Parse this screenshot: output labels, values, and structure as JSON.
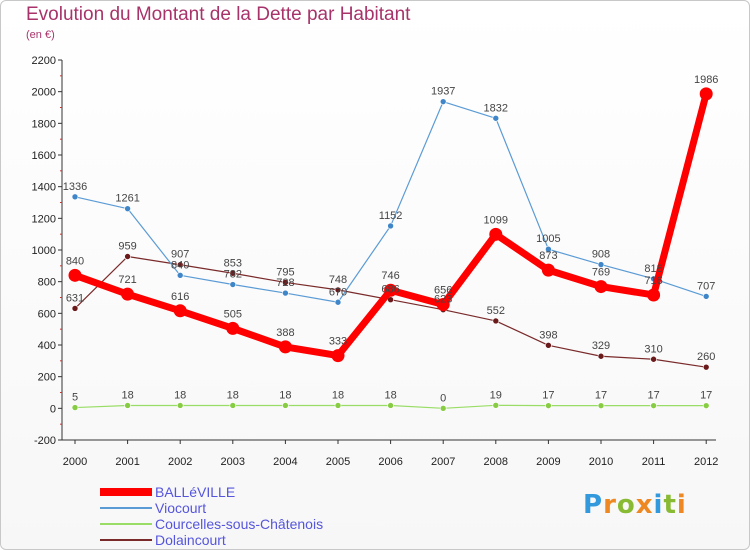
{
  "chart_data": {
    "type": "line",
    "title": "Evolution du Montant de la Dette par Habitant",
    "subtitle": "(en €)",
    "x": [
      "2000",
      "2001",
      "2002",
      "2003",
      "2004",
      "2005",
      "2006",
      "2007",
      "2008",
      "2009",
      "2010",
      "2011",
      "2012"
    ],
    "ylim": [
      -200,
      2200
    ],
    "yticks": [
      -200,
      0,
      200,
      400,
      600,
      800,
      1000,
      1200,
      1400,
      1600,
      1800,
      2000,
      2200
    ],
    "grid": false,
    "legend_position": "bottom-left",
    "series": [
      {
        "name": "BALLéVILLE",
        "color": "#ff0000",
        "values": [
          840,
          721,
          616,
          505,
          388,
          333,
          746,
          656,
          1099,
          873,
          769,
          716,
          1986
        ]
      },
      {
        "name": "Viocourt",
        "color": "#5b9bd5",
        "values": [
          1336,
          1261,
          840,
          782,
          728,
          670,
          1152,
          1937,
          1832,
          1005,
          908,
          818,
          707
        ]
      },
      {
        "name": "Courcelles-sous-Châtenois",
        "color": "#99dd66",
        "values": [
          5,
          18,
          18,
          18,
          18,
          18,
          18,
          0,
          19,
          17,
          17,
          17,
          17
        ]
      },
      {
        "name": "Dolaincourt",
        "color": "#7a2a2a",
        "values": [
          631,
          959,
          907,
          853,
          795,
          748,
          686,
          623,
          552,
          398,
          329,
          310,
          260
        ]
      }
    ]
  },
  "brand": {
    "letters": [
      "P",
      "r",
      "o",
      "x",
      "i",
      "t",
      "i"
    ],
    "colors": [
      "#3399dd",
      "#ee8822",
      "#88bb33",
      "#ee8822",
      "#3399dd",
      "#88bb33",
      "#ee8822"
    ]
  }
}
